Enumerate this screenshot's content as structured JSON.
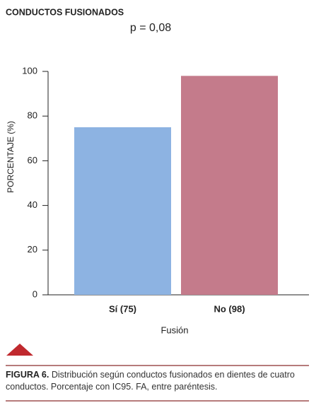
{
  "chart_data": {
    "type": "bar",
    "title": "CONDUCTOS FUSIONADOS",
    "subtitle": "p = 0,08",
    "categories": [
      "Sí (75)",
      "No (98)"
    ],
    "values": [
      75,
      98
    ],
    "colors": [
      "#8db3e2",
      "#c47b8b"
    ],
    "ylim": [
      0,
      100
    ],
    "yticks": [
      0,
      20,
      40,
      60,
      80,
      100
    ],
    "y_label": "PORCENTAJE (%)",
    "x_label": "Fusión"
  },
  "caption": {
    "label": "FIGURA 6.",
    "text": "Distribución según conductos fusionados en dientes de cuatro conductos. Porcentaje con IC95. FA, entre paréntesis."
  }
}
